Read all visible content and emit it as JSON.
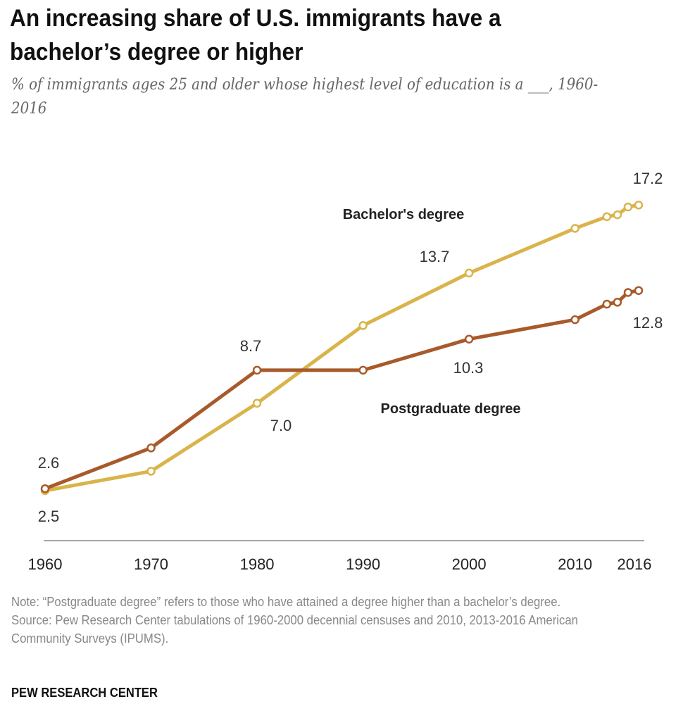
{
  "title": "An increasing share of U.S. immigrants have a bachelor’s degree or higher",
  "subtitle": "% of immigrants ages 25 and older whose highest level of education is a ___, 1960-2016",
  "note": "Note: “Postgraduate degree” refers to those who have attained a degree higher than a bachelor’s degree.",
  "source": "Source: Pew Research Center tabulations of 1960-2000 decennial censuses and 2010, 2013-2016 American Community Surveys (IPUMS).",
  "brand": "PEW RESEARCH CENTER",
  "chart_data": {
    "type": "line",
    "x_ticks": [
      "1960",
      "1970",
      "1980",
      "1990",
      "2000",
      "2010",
      "2016"
    ],
    "x": [
      1960,
      1970,
      1980,
      1990,
      2000,
      2010,
      2013,
      2014,
      2015,
      2016
    ],
    "series": [
      {
        "name": "Bachelor's degree",
        "color": "#d9b44a",
        "values": [
          2.5,
          3.5,
          7.0,
          11.0,
          13.7,
          16.0,
          16.6,
          16.7,
          17.1,
          17.2
        ],
        "labels": [
          {
            "index": 2,
            "text": "7.0"
          },
          {
            "index": 4,
            "text": "13.7"
          },
          {
            "index": 9,
            "text": "17.2"
          }
        ]
      },
      {
        "name": "Postgraduate degree",
        "color": "#a85a2a",
        "values": [
          2.6,
          4.7,
          8.7,
          8.7,
          10.3,
          11.3,
          12.1,
          12.2,
          12.7,
          12.8
        ],
        "labels": [
          {
            "index": 0,
            "text": "2.6"
          },
          {
            "index": 2,
            "text": "8.7"
          },
          {
            "index": 4,
            "text": "10.3"
          },
          {
            "index": 9,
            "text": "12.8"
          }
        ]
      }
    ],
    "point_label_below": [
      "2.5"
    ],
    "ylim": [
      0,
      20
    ],
    "grid": false,
    "legend": "inline labels"
  }
}
